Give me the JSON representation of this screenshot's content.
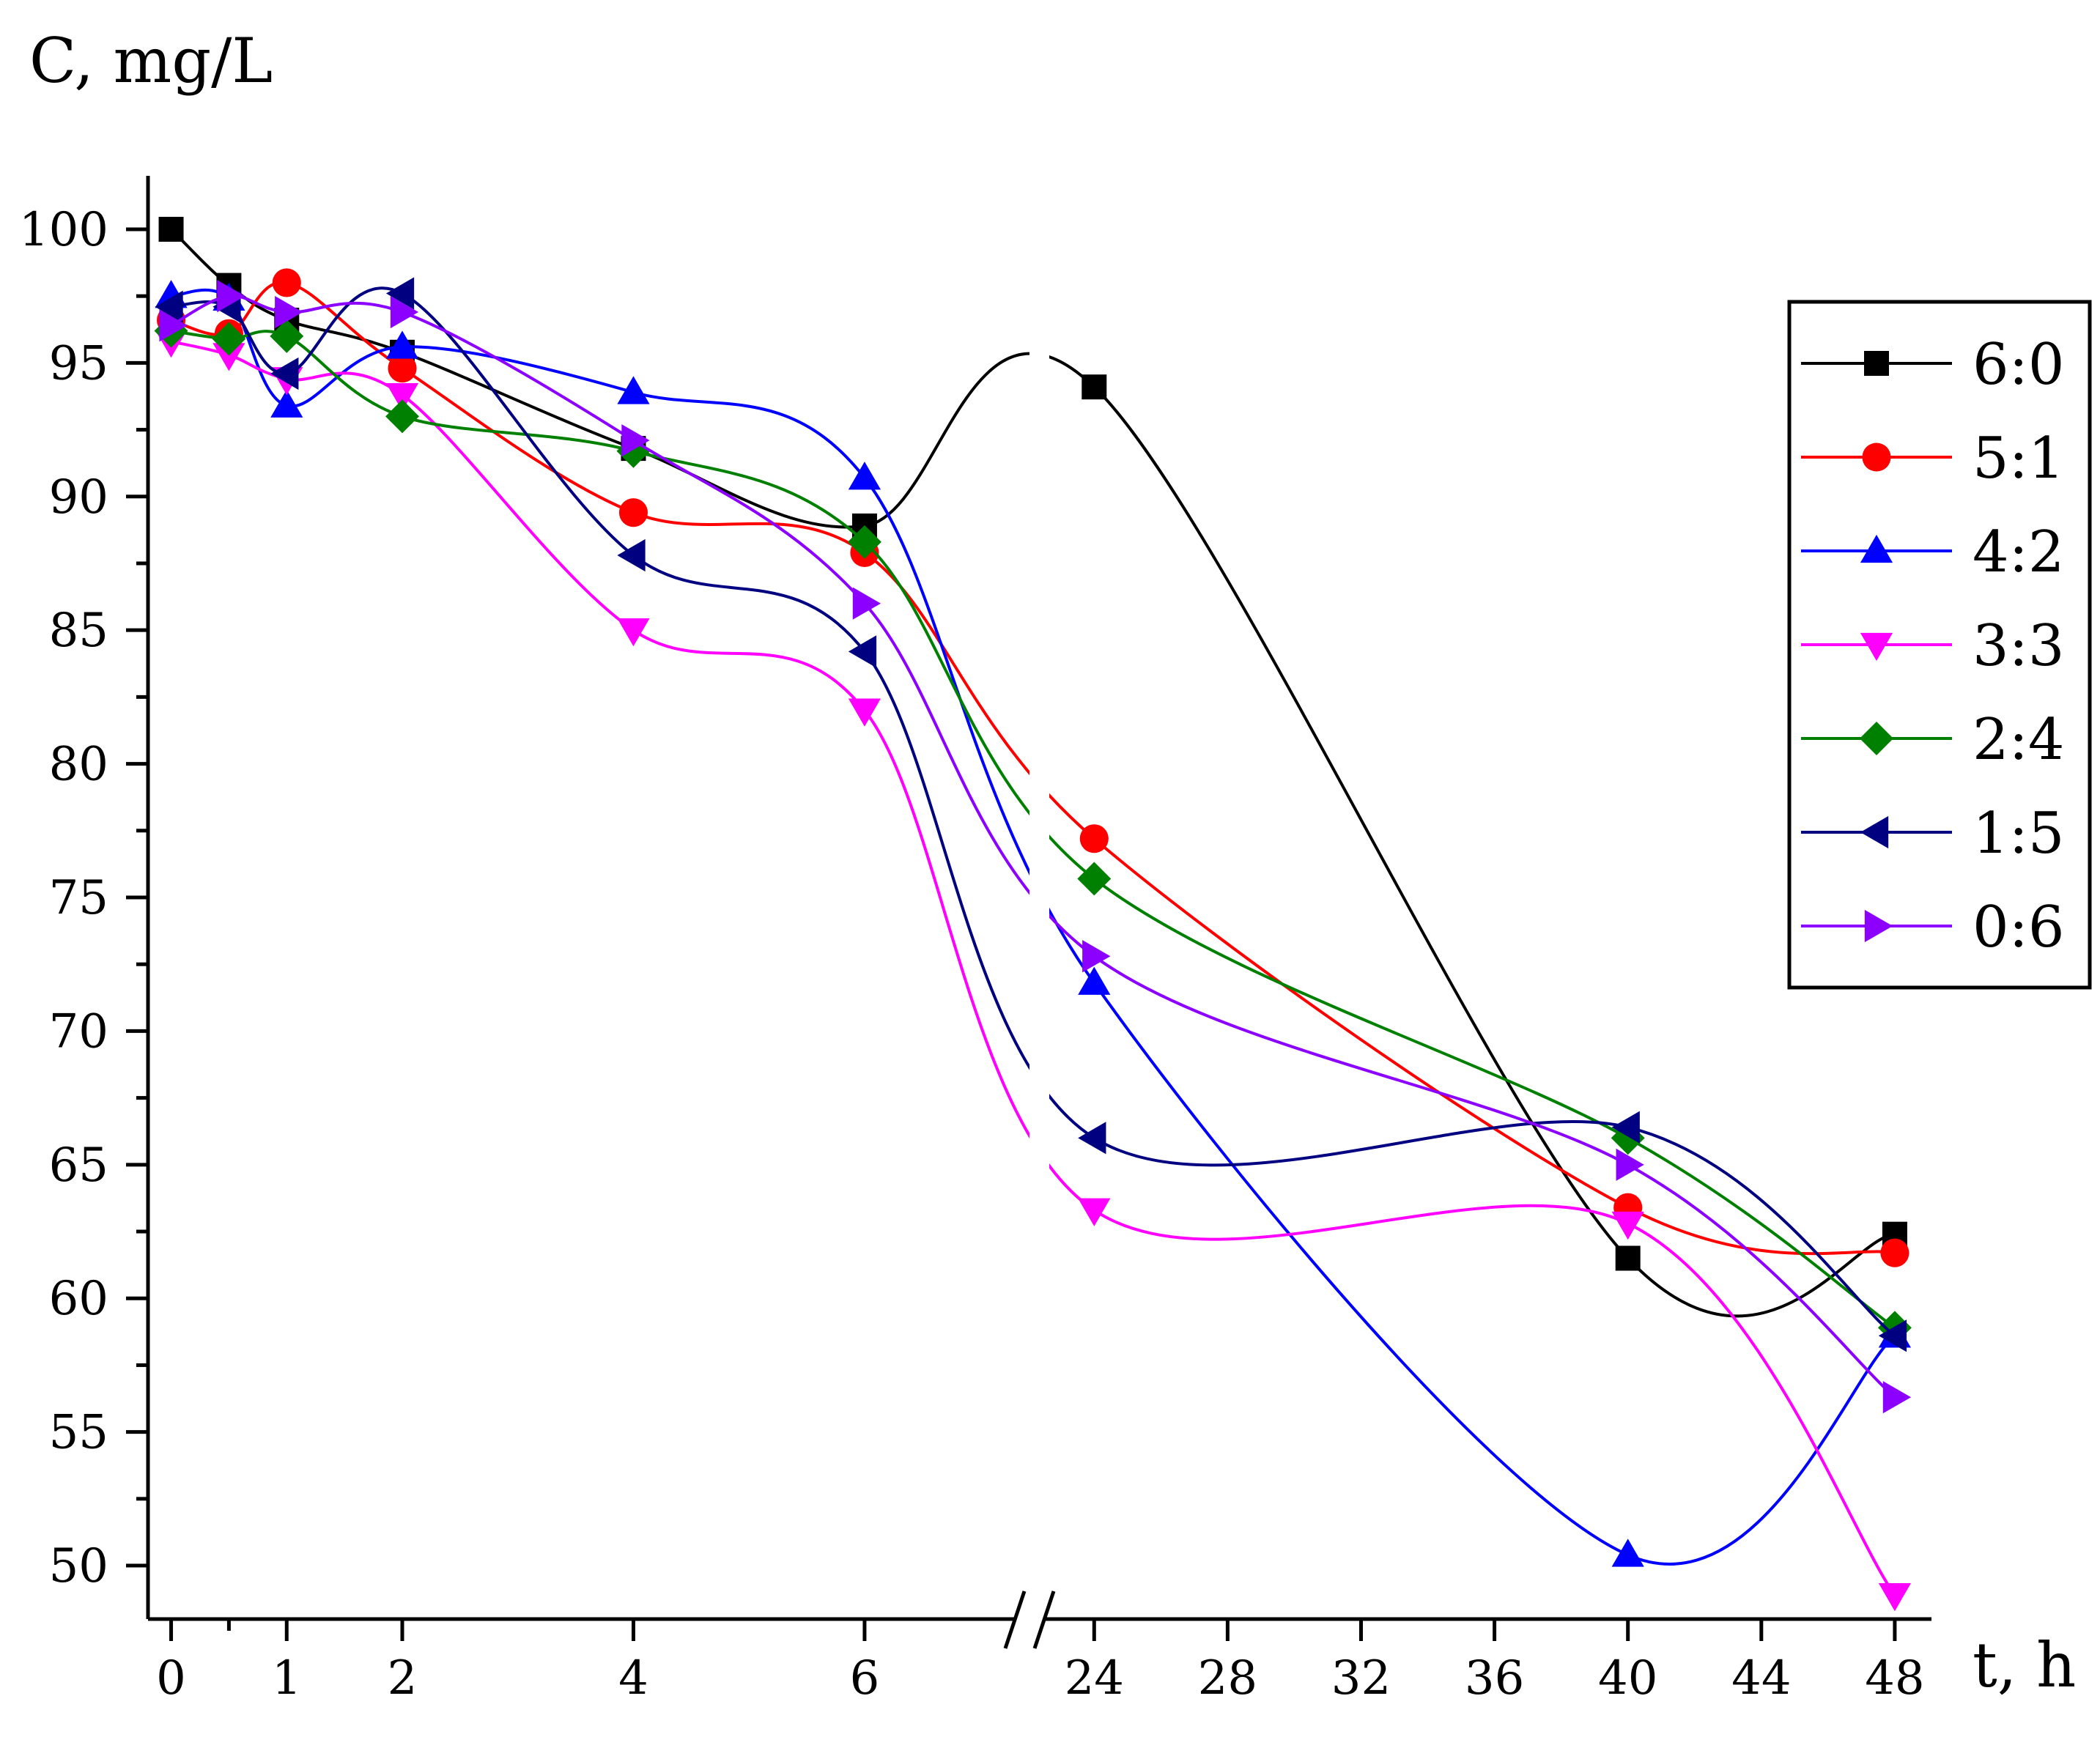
{
  "chart_data": {
    "type": "line",
    "title": "",
    "ylabel": "C, mg/L",
    "xlabel": "t, h",
    "ylim": [
      48,
      102
    ],
    "x_segments": [
      {
        "range": [
          -0.2,
          7.3
        ],
        "ticks": [
          0,
          1,
          2,
          4,
          6
        ],
        "minor_ticks": [
          0.5
        ]
      },
      {
        "range": [
          22.5,
          49.1
        ],
        "ticks": [
          24,
          28,
          32,
          36,
          40,
          44,
          48
        ]
      }
    ],
    "ytick_labels": [
      100,
      95,
      90,
      85,
      80,
      75,
      70,
      65,
      60,
      55,
      50
    ],
    "axis_break": "//",
    "x": [
      0,
      0.5,
      1,
      2,
      4,
      6,
      24,
      40,
      48
    ],
    "series": [
      {
        "name": "6:0",
        "color": "#000000",
        "marker": "square",
        "values": [
          100.0,
          97.9,
          96.6,
          95.4,
          91.8,
          88.9,
          94.1,
          61.5,
          62.4
        ]
      },
      {
        "name": "5:1",
        "color": "#ff0000",
        "marker": "circle",
        "values": [
          96.6,
          96.1,
          98.0,
          94.8,
          89.4,
          87.9,
          77.2,
          63.4,
          61.7
        ]
      },
      {
        "name": "4:2",
        "color": "#0000ff",
        "marker": "triangle-up",
        "values": [
          97.5,
          97.4,
          93.4,
          95.6,
          93.9,
          90.7,
          71.8,
          50.4,
          58.6
        ]
      },
      {
        "name": "3:3",
        "color": "#ff00ff",
        "marker": "triangle-down",
        "values": [
          95.8,
          95.3,
          94.4,
          93.8,
          85.0,
          82.0,
          63.3,
          62.8,
          48.9
        ]
      },
      {
        "name": "2:4",
        "color": "#008000",
        "marker": "diamond",
        "values": [
          96.2,
          95.9,
          96.0,
          93.0,
          91.7,
          88.3,
          75.7,
          66.0,
          58.9
        ]
      },
      {
        "name": "1:5",
        "color": "#000080",
        "marker": "triangle-left",
        "values": [
          97.1,
          97.1,
          94.6,
          97.6,
          87.8,
          84.2,
          66.0,
          66.4,
          58.6
        ]
      },
      {
        "name": "0:6",
        "color": "#8b00ff",
        "marker": "triangle-right",
        "values": [
          96.4,
          97.5,
          96.9,
          96.9,
          92.1,
          86.0,
          72.8,
          65.0,
          56.3
        ]
      }
    ],
    "legend_position": "right"
  }
}
